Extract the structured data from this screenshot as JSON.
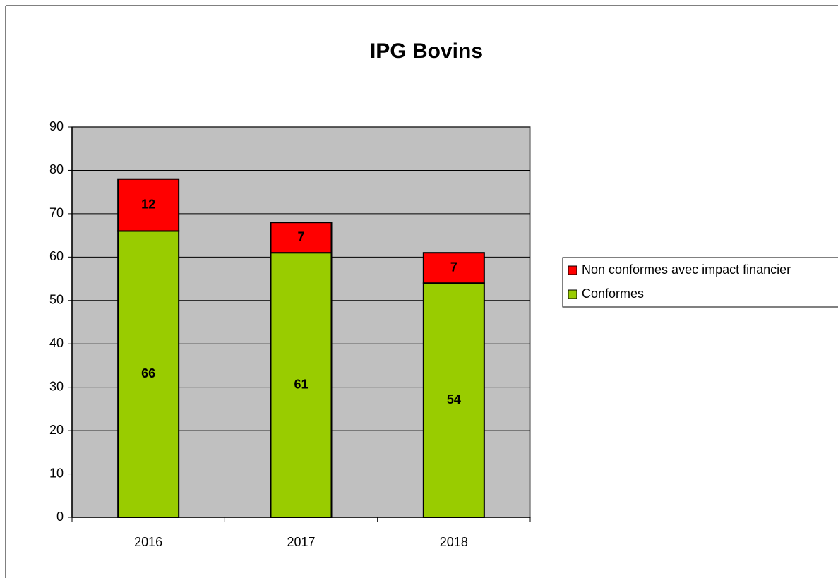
{
  "chart_data": {
    "type": "stacked-bar",
    "title": "IPG Bovins",
    "categories": [
      "2016",
      "2017",
      "2018"
    ],
    "series": [
      {
        "name": "Conformes",
        "color": "#99cc00",
        "values": [
          66,
          61,
          54
        ]
      },
      {
        "name": "Non conformes avec impact financier",
        "color": "#ff0000",
        "values": [
          12,
          7,
          7
        ]
      }
    ],
    "ylim": [
      0,
      90
    ],
    "yticks": [
      0,
      10,
      20,
      30,
      40,
      50,
      60,
      70,
      80,
      90
    ],
    "grid": true,
    "plot_background": "#c0c0c0",
    "legend": "right"
  }
}
